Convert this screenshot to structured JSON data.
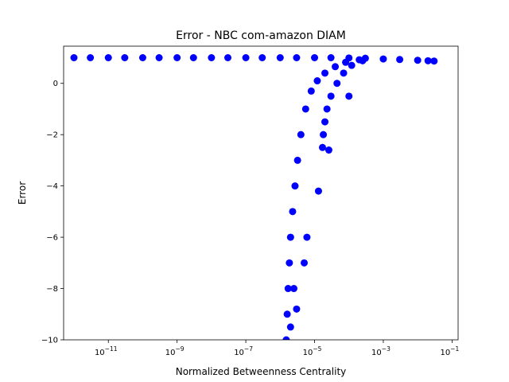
{
  "chart_data": {
    "type": "scatter",
    "title": "Error - NBC com-amazon DIAM",
    "xlabel": "Normalized Betweenness Centrality",
    "ylabel": "Error",
    "x_scale": "log",
    "xlim": [
      5e-13,
      0.15
    ],
    "ylim": [
      -10,
      1.45
    ],
    "x_ticks": [
      {
        "value": 1e-11,
        "base": "10",
        "exp": "−11"
      },
      {
        "value": 1e-09,
        "base": "10",
        "exp": "−9"
      },
      {
        "value": 1e-07,
        "base": "10",
        "exp": "−7"
      },
      {
        "value": 1e-05,
        "base": "10",
        "exp": "−5"
      },
      {
        "value": 0.001,
        "base": "10",
        "exp": "−3"
      },
      {
        "value": 0.1,
        "base": "10",
        "exp": "−1"
      }
    ],
    "y_ticks": [
      {
        "value": 0,
        "label": "0"
      },
      {
        "value": -2,
        "label": "−2"
      },
      {
        "value": -4,
        "label": "−4"
      },
      {
        "value": -6,
        "label": "−6"
      },
      {
        "value": -8,
        "label": "−8"
      },
      {
        "value": -10,
        "label": "−10"
      }
    ],
    "grid": false,
    "legend": "none",
    "marker_color": "#0000ff",
    "series": [
      {
        "points": [
          [
            1e-12,
            1.0
          ],
          [
            3e-12,
            1.0
          ],
          [
            1e-11,
            1.0
          ],
          [
            3e-11,
            1.0
          ],
          [
            1e-10,
            1.0
          ],
          [
            3e-10,
            1.0
          ],
          [
            1e-09,
            1.0
          ],
          [
            3e-09,
            1.0
          ],
          [
            1e-08,
            1.0
          ],
          [
            3e-08,
            1.0
          ],
          [
            1e-07,
            1.0
          ],
          [
            3e-07,
            1.0
          ],
          [
            1e-06,
            1.0
          ],
          [
            3e-06,
            1.0
          ],
          [
            1e-05,
            1.0
          ],
          [
            3e-05,
            1.0
          ],
          [
            0.0001,
            0.99
          ],
          [
            0.0003,
            0.98
          ],
          [
            0.001,
            0.95
          ],
          [
            0.003,
            0.93
          ],
          [
            0.01,
            0.9
          ],
          [
            0.02,
            0.88
          ],
          [
            0.03,
            0.87
          ],
          [
            1.5e-06,
            -10.0
          ],
          [
            1.6e-06,
            -9.0
          ],
          [
            1.7e-06,
            -8.0
          ],
          [
            1.85e-06,
            -7.0
          ],
          [
            2e-06,
            -6.0
          ],
          [
            2.3e-06,
            -5.0
          ],
          [
            2.7e-06,
            -4.0
          ],
          [
            3.2e-06,
            -3.0
          ],
          [
            4e-06,
            -2.0
          ],
          [
            5.5e-06,
            -1.0
          ],
          [
            8e-06,
            -0.3
          ],
          [
            1.2e-05,
            0.1
          ],
          [
            2e-05,
            0.4
          ],
          [
            4e-05,
            0.65
          ],
          [
            8e-05,
            0.82
          ],
          [
            0.0002,
            0.92
          ],
          [
            1.7e-05,
            -2.5
          ],
          [
            1.8e-05,
            -2.0
          ],
          [
            2e-05,
            -1.5
          ],
          [
            2.3e-05,
            -1.0
          ],
          [
            3e-05,
            -0.5
          ],
          [
            4.5e-05,
            0.0
          ],
          [
            7e-05,
            0.4
          ],
          [
            0.00012,
            0.7
          ],
          [
            0.00025,
            0.88
          ],
          [
            2.6e-05,
            -2.6
          ],
          [
            0.0001,
            -0.5
          ],
          [
            1.3e-05,
            -4.2
          ],
          [
            3e-06,
            -8.8
          ],
          [
            2e-06,
            -9.5
          ],
          [
            6e-06,
            -6.0
          ],
          [
            5e-06,
            -7.0
          ],
          [
            2.5e-06,
            -8.0
          ]
        ]
      }
    ]
  }
}
